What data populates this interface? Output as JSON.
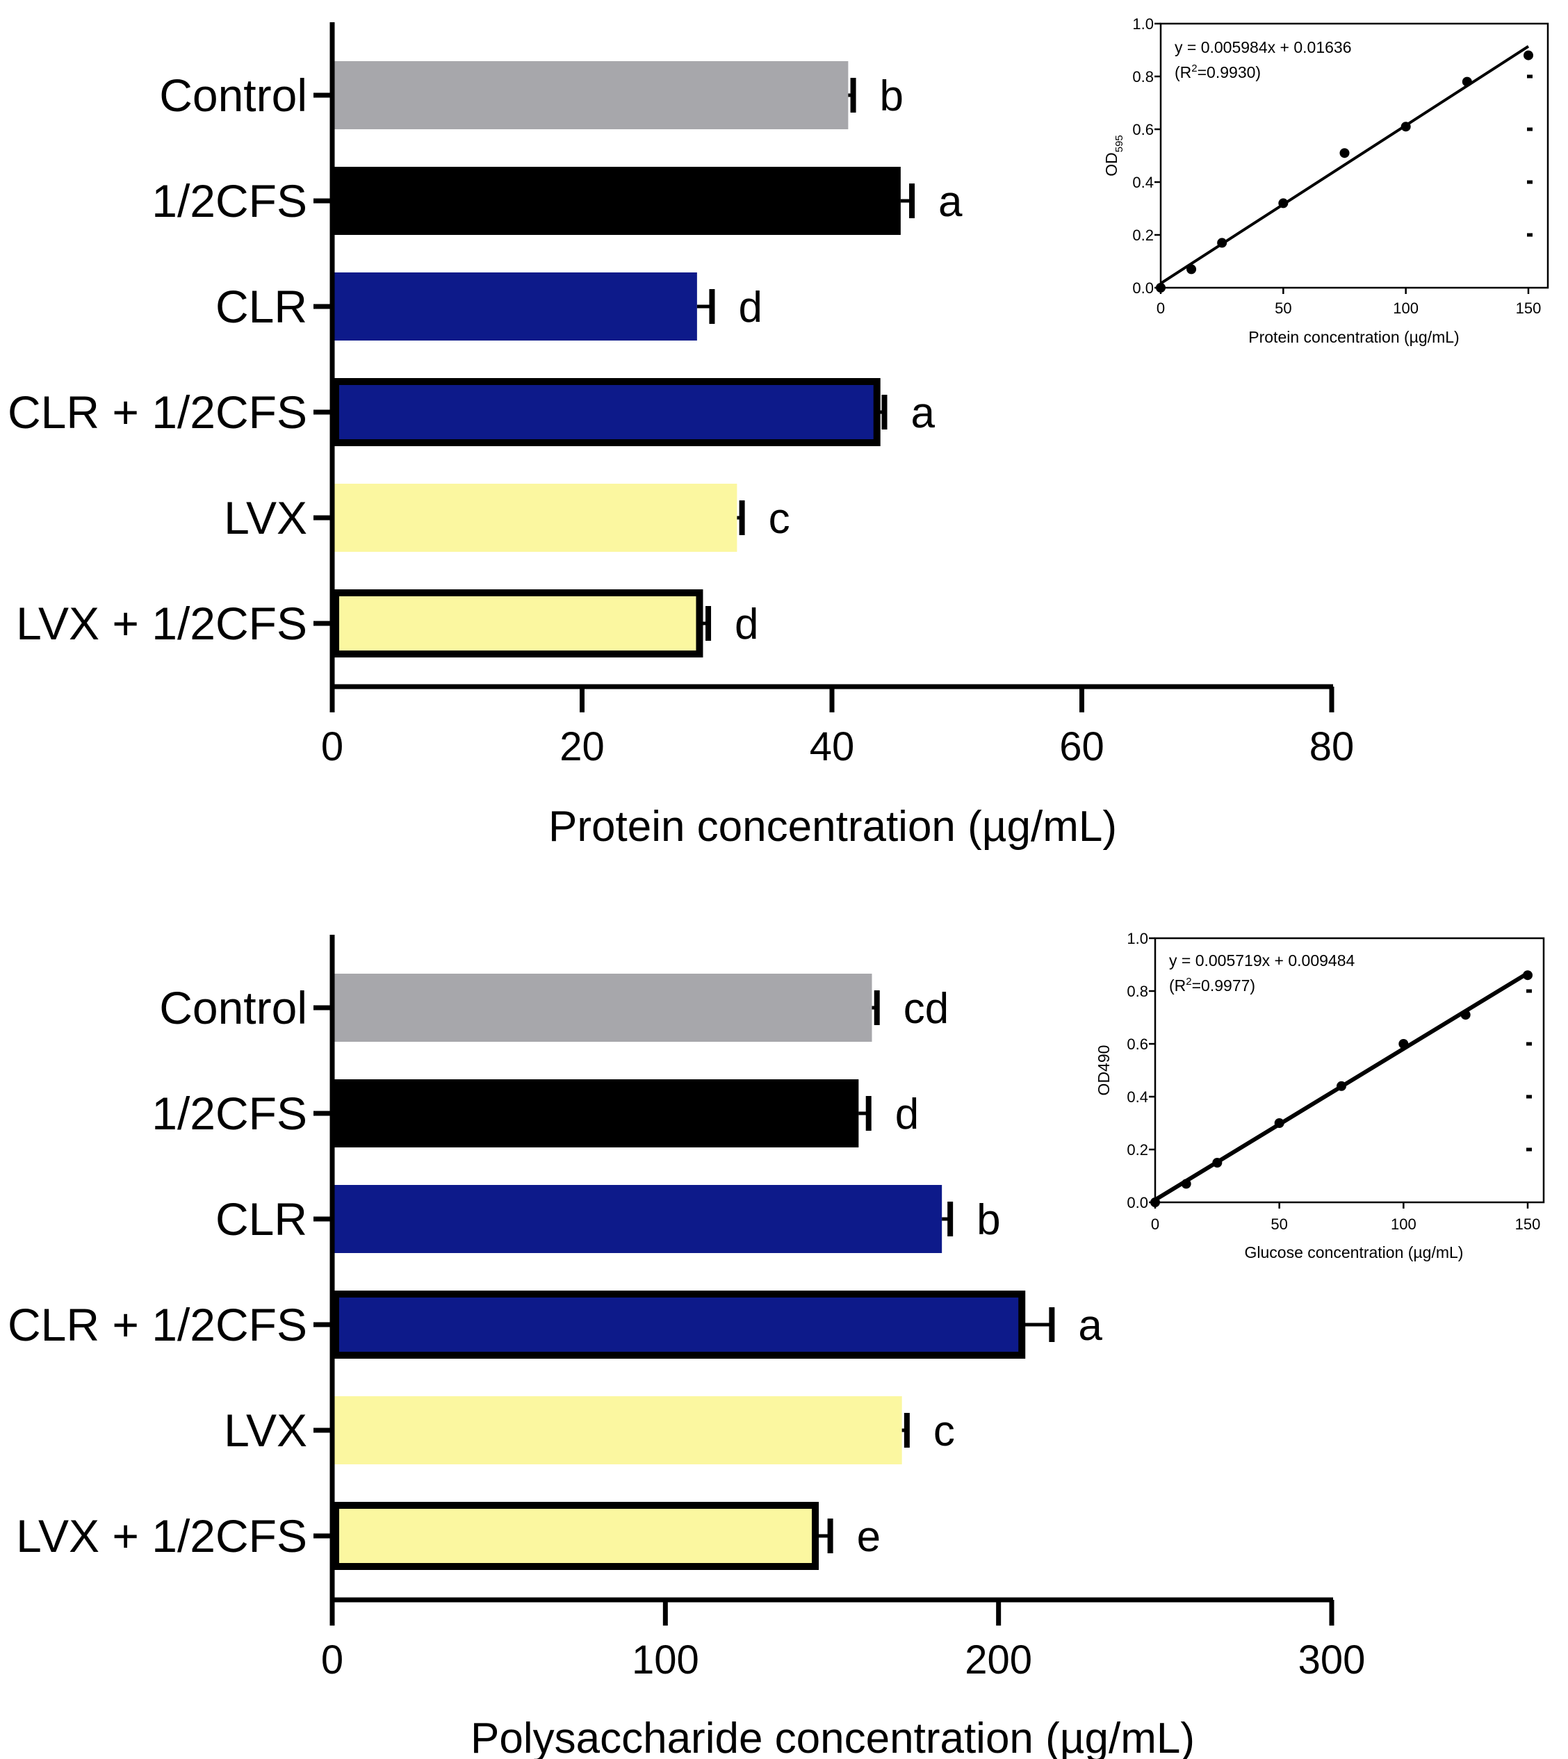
{
  "figure": {
    "panels": [
      {
        "title": "",
        "xlabel": "Protein concentration (µg/mL)",
        "ylabel": "",
        "xlim": [
          0,
          80
        ],
        "xticks": [
          0,
          20,
          40,
          60,
          80
        ],
        "tick_labels": [
          "0",
          "20",
          "40",
          "60",
          "80"
        ]
      },
      {
        "title": "",
        "xlabel": "Polysaccharide concentration (µg/mL)",
        "ylabel": "",
        "xlim": [
          0,
          300
        ],
        "xticks": [
          0,
          100,
          200,
          300
        ],
        "tick_labels": [
          "0",
          "100",
          "200",
          "300"
        ]
      }
    ],
    "insets": [
      {
        "xlabel": "Protein concentration (µg/mL)",
        "ylabel_main": "OD",
        "ylabel_sub": "595",
        "equation": "y = 0.005984x + 0.01636",
        "r2_open": "(R",
        "r2_sup": "2",
        "r2_close": "=0.9930)",
        "xticks": [
          "0",
          "50",
          "100",
          "150"
        ],
        "yticks": [
          "0.0",
          "0.2",
          "0.4",
          "0.6",
          "0.8",
          "1.0"
        ]
      },
      {
        "xlabel": "Glucose concentration (µg/mL)",
        "ylabel": "OD490",
        "equation": "y = 0.005719x  + 0.009484",
        "r2_open": "(R",
        "r2_sup": "2",
        "r2_close": "=0.9977)",
        "xticks": [
          "0",
          "50",
          "100",
          "150"
        ],
        "yticks": [
          "0.0",
          "0.2",
          "0.4",
          "0.6",
          "0.8",
          "1.0"
        ]
      }
    ]
  },
  "colors": {
    "Control": "#a7a7ab",
    "1/2CFS": "#000000",
    "CLR": "#0d1a8a",
    "CLR + 1/2CFS": "#0d1a8a",
    "LVX": "#fbf7a0",
    "LVX + 1/2CFS": "#fbf7a0"
  },
  "chart_data": [
    {
      "type": "bar",
      "orientation": "horizontal",
      "title": "",
      "xlabel": "Protein concentration (µg/mL)",
      "ylabel": "",
      "xlim": [
        0,
        80
      ],
      "categories": [
        "Control",
        "1/2CFS",
        "CLR",
        "CLR + 1/2CFS",
        "LVX",
        "LVX + 1/2CFS"
      ],
      "values": [
        41.3,
        45.5,
        29.2,
        43.6,
        32.4,
        29.4
      ],
      "errors": [
        0.4,
        0.9,
        1.2,
        0.6,
        0.4,
        0.7
      ],
      "significance": [
        "b",
        "a",
        "d",
        "a",
        "c",
        "d"
      ],
      "outlined": [
        false,
        false,
        false,
        true,
        false,
        true
      ],
      "legend": "none"
    },
    {
      "type": "bar",
      "orientation": "horizontal",
      "title": "",
      "xlabel": "Polysaccharide concentration (µg/mL)",
      "ylabel": "",
      "xlim": [
        0,
        300
      ],
      "categories": [
        "Control",
        "1/2CFS",
        "CLR",
        "CLR + 1/2CFS",
        "LVX",
        "LVX + 1/2CFS"
      ],
      "values": [
        162,
        158,
        183,
        207,
        171,
        145
      ],
      "errors": [
        1.5,
        3,
        2.5,
        9,
        1.5,
        4.5
      ],
      "significance": [
        "cd",
        "d",
        "b",
        "a",
        "c",
        "e"
      ],
      "outlined": [
        false,
        false,
        false,
        true,
        false,
        true
      ],
      "legend": "none"
    },
    {
      "type": "scatter",
      "title": "",
      "xlabel": "Protein concentration (µg/mL)",
      "ylabel": "OD595",
      "xlim": [
        0,
        150
      ],
      "ylim": [
        0,
        1.0
      ],
      "x": [
        0,
        12.5,
        25,
        50,
        75,
        100,
        125,
        150
      ],
      "y": [
        0.0,
        0.07,
        0.17,
        0.32,
        0.51,
        0.61,
        0.78,
        0.88
      ],
      "fit": {
        "slope": 0.005984,
        "intercept": 0.01636,
        "r2": 0.993
      },
      "equation": "y = 0.005984x + 0.01636"
    },
    {
      "type": "scatter",
      "title": "",
      "xlabel": "Glucose concentration (µg/mL)",
      "ylabel": "OD490",
      "xlim": [
        0,
        150
      ],
      "ylim": [
        0,
        1.0
      ],
      "x": [
        0,
        12.5,
        25,
        50,
        75,
        100,
        125,
        150
      ],
      "y": [
        0.0,
        0.07,
        0.15,
        0.3,
        0.44,
        0.6,
        0.71,
        0.86
      ],
      "fit": {
        "slope": 0.005719,
        "intercept": 0.009484,
        "r2": 0.9977
      },
      "equation": "y = 0.005719x  + 0.009484"
    }
  ]
}
